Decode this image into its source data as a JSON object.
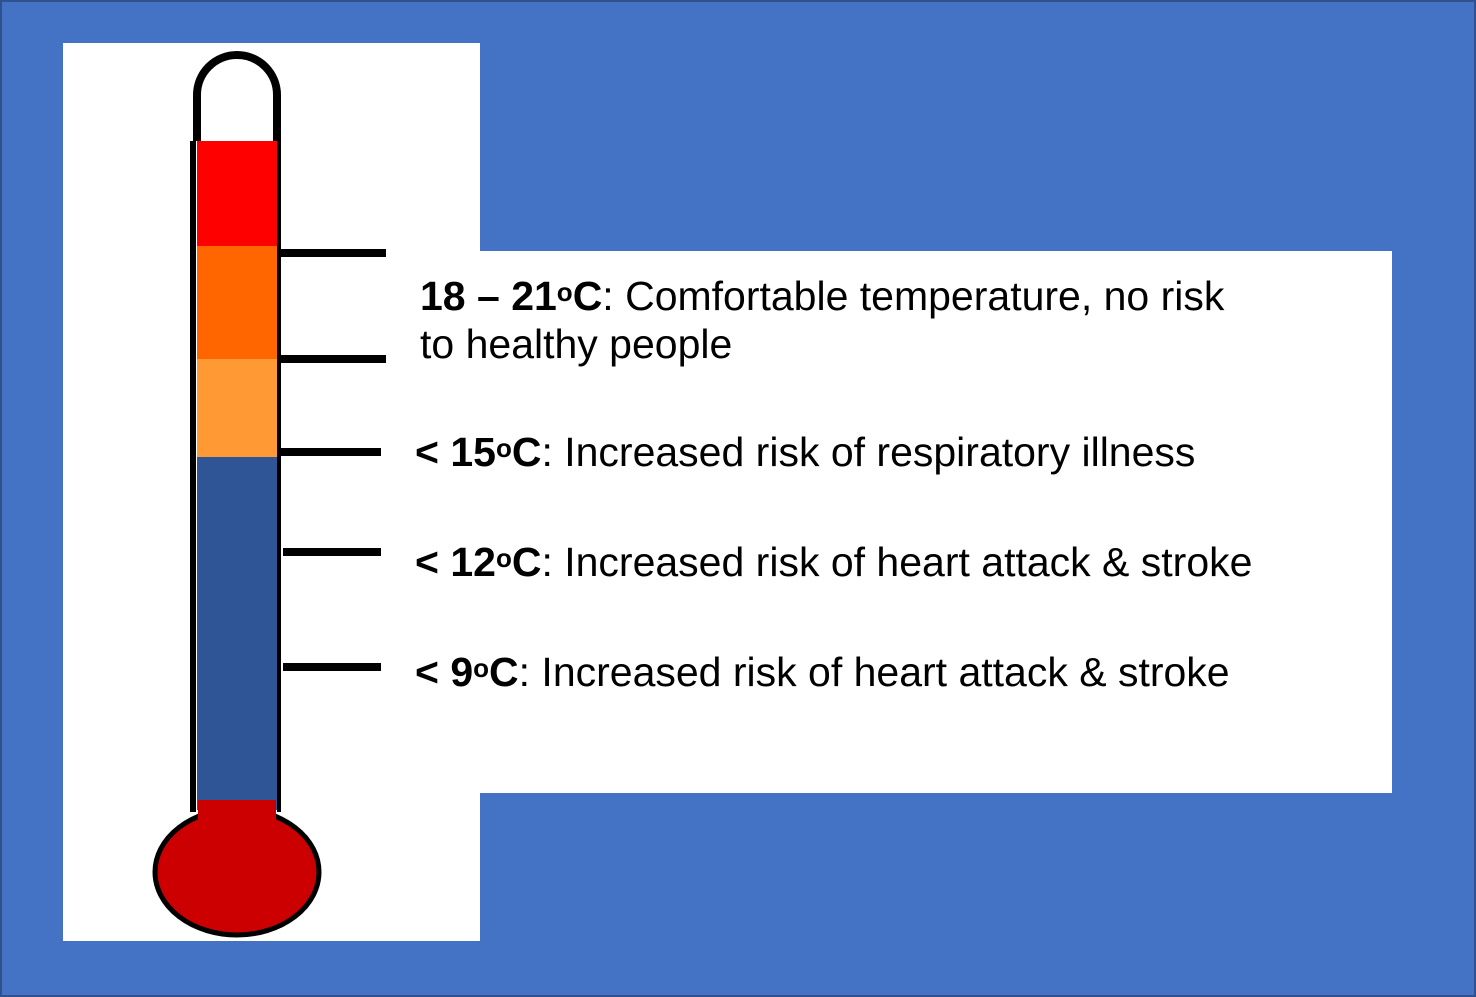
{
  "colors": {
    "background": "#4472c4",
    "band_hot": "#ff0000",
    "band_warm": "#ff6600",
    "band_mild": "#ff9933",
    "band_cold": "#2f5597",
    "bulb": "#cc0000"
  },
  "items": [
    {
      "prefix": "18 – 21",
      "deg": "o",
      "unit": "C",
      "text": ": Comfortable temperature, no risk",
      "text2": "to healthy people"
    },
    {
      "prefix": "< 15",
      "deg": "o",
      "unit": "C",
      "text": ": Increased risk of respiratory illness"
    },
    {
      "prefix": "< 12",
      "deg": "o",
      "unit": "C",
      "text": ": Increased risk of heart attack & stroke"
    },
    {
      "prefix": "< 9",
      "deg": "o",
      "unit": "C",
      "text": ": Increased risk of heart attack & stroke"
    }
  ]
}
